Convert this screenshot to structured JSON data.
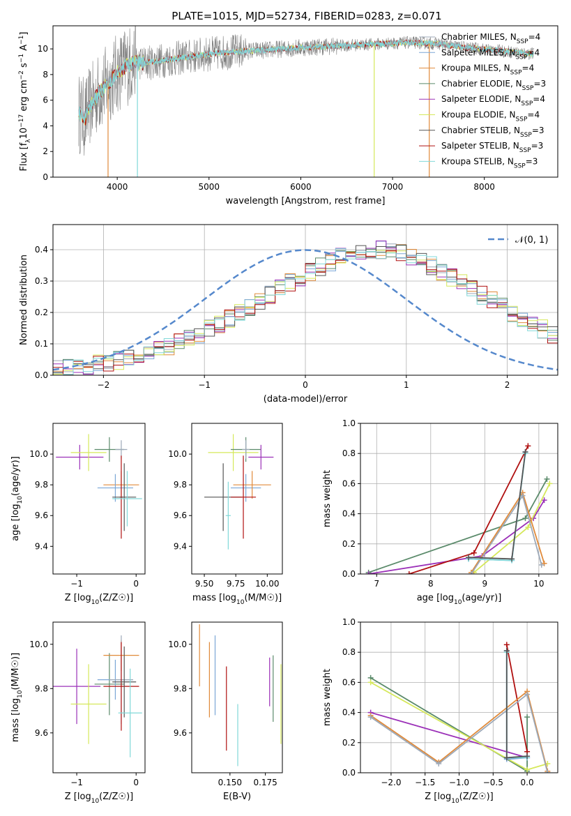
{
  "figure": {
    "title": "PLATE=1015, MJD=52734, FIBERID=0283, z=0.071"
  },
  "colors": {
    "Chabrier MILES": "#9da9b8",
    "Salpeter MILES": "#7aa6d6",
    "Kroupa MILES": "#e08a3a",
    "Chabrier ELODIE": "#5a8a6a",
    "Salpeter ELODIE": "#9b30b8",
    "Kroupa ELODIE": "#d5e85a",
    "Chabrier STELIB": "#555555",
    "Salpeter STELIB": "#b01010",
    "Kroupa STELIB": "#80d8d8",
    "observed": "#808080",
    "normal": "#5588cc",
    "grid": "#b0b0b0"
  },
  "chart_data": [
    {
      "id": "spectrum",
      "type": "line",
      "title": "PLATE=1015, MJD=52734, FIBERID=0283, z=0.071",
      "xlabel": "wavelength [Angstrom, rest frame]",
      "ylabel": "Flux [f_λ10^-17 erg cm^-2 s^-1 A^-1]",
      "xlim": [
        3300,
        8800
      ],
      "ylim": [
        0,
        11.8
      ],
      "xticks": [
        "4000",
        "5000",
        "6000",
        "7000",
        "8000"
      ],
      "yticks": [
        "0",
        "2",
        "4",
        "6",
        "8",
        "10"
      ],
      "grid": false,
      "legend_position": "right",
      "legend": [
        {
          "label": "Chabrier MILES",
          "sub": "N",
          "ssp": "SSP",
          "eq": "=4"
        },
        {
          "label": "Salpeter MILES",
          "sub": "N",
          "ssp": "SSP",
          "eq": "=4"
        },
        {
          "label": "Kroupa MILES",
          "sub": "N",
          "ssp": "SSP",
          "eq": "=4"
        },
        {
          "label": "Chabrier ELODIE",
          "sub": "N",
          "ssp": "SSP",
          "eq": "=3"
        },
        {
          "label": "Salpeter ELODIE",
          "sub": "N",
          "ssp": "SSP",
          "eq": "=4"
        },
        {
          "label": "Kroupa ELODIE",
          "sub": "N",
          "ssp": "SSP",
          "eq": "=4"
        },
        {
          "label": "Chabrier STELIB",
          "sub": "N",
          "ssp": "SSP",
          "eq": "=3"
        },
        {
          "label": "Salpeter STELIB",
          "sub": "N",
          "ssp": "SSP",
          "eq": "=3"
        },
        {
          "label": "Kroupa STELIB",
          "sub": "N",
          "ssp": "SSP",
          "eq": "=3"
        }
      ],
      "legend_display": [
        "Chabrier MILES, N_SSP=4",
        "Salpeter MILES, N_SSP=4",
        "Kroupa MILES, N_SSP=4",
        "Chabrier ELODIE, N_SSP=3",
        "Salpeter ELODIE, N_SSP=4",
        "Kroupa ELODIE, N_SSP=4",
        "Chabrier STELIB, N_SSP=3",
        "Salpeter STELIB, N_SSP=3",
        "Kroupa STELIB, N_SSP=3"
      ],
      "model_continuum": {
        "x": [
          3580,
          3650,
          3700,
          3800,
          3900,
          4000,
          4100,
          4200,
          4300,
          4500,
          4700,
          5000,
          5300,
          5600,
          5800,
          6000,
          6300,
          6600,
          6900,
          7200,
          7500,
          7800,
          8100,
          8400,
          8550
        ],
        "y": [
          5.0,
          4.6,
          5.5,
          6.6,
          7.3,
          8.1,
          8.7,
          9.0,
          8.9,
          9.1,
          9.3,
          9.6,
          9.8,
          9.9,
          10.0,
          10.1,
          10.2,
          10.3,
          10.4,
          10.5,
          10.4,
          10.1,
          9.9,
          9.7,
          9.6
        ]
      }
    },
    {
      "id": "residuals",
      "type": "bar",
      "xlabel": "(data-model)/error",
      "ylabel": "Normed distribution",
      "xlim": [
        -2.5,
        2.5
      ],
      "ylim": [
        0,
        0.48
      ],
      "xticks": [
        "−2",
        "−1",
        "0",
        "1",
        "2"
      ],
      "yticks": [
        "0.0",
        "0.1",
        "0.2",
        "0.3",
        "0.4"
      ],
      "grid": true,
      "legend_position": "top-right",
      "legend": [
        "𝒩(0, 1)"
      ],
      "bin_width": 0.1,
      "series_profile": [
        0.02,
        0.022,
        0.028,
        0.032,
        0.036,
        0.04,
        0.046,
        0.052,
        0.06,
        0.07,
        0.08,
        0.09,
        0.104,
        0.118,
        0.132,
        0.148,
        0.165,
        0.182,
        0.2,
        0.218,
        0.237,
        0.256,
        0.275,
        0.294,
        0.312,
        0.33,
        0.347,
        0.362,
        0.376,
        0.388,
        0.396,
        0.4,
        0.4,
        0.396,
        0.388,
        0.378,
        0.364,
        0.348,
        0.33,
        0.312,
        0.293,
        0.274,
        0.255,
        0.236,
        0.217,
        0.199,
        0.181,
        0.164,
        0.147,
        0.131
      ]
    },
    {
      "id": "age-vs-Z",
      "type": "scatter",
      "xlabel": "Z [log10(Z/Z☉)]",
      "ylabel": "age  [log10(age/yr)]",
      "xlim": [
        -1.4,
        0.15
      ],
      "ylim": [
        9.22,
        10.2
      ],
      "xticks": [
        "−1",
        "0"
      ],
      "yticks": [
        "9.4",
        "9.6",
        "9.8",
        "10.0"
      ],
      "points": [
        {
          "series": "Salpeter ELODIE",
          "x": -0.95,
          "y": 9.98,
          "xerr": 0.4,
          "yerr": 0.08
        },
        {
          "series": "Kroupa ELODIE",
          "x": -0.8,
          "y": 10.01,
          "xerr": 0.3,
          "yerr": 0.12
        },
        {
          "series": "Chabrier ELODIE",
          "x": -0.45,
          "y": 10.03,
          "xerr": 0.25,
          "yerr": 0.08
        },
        {
          "series": "Chabrier MILES",
          "x": -0.25,
          "y": 10.03,
          "xerr": 0.1,
          "yerr": 0.06
        },
        {
          "series": "Kroupa MILES",
          "x": -0.25,
          "y": 9.8,
          "xerr": 0.3,
          "yerr": 0.09
        },
        {
          "series": "Salpeter MILES",
          "x": -0.35,
          "y": 9.78,
          "xerr": 0.3,
          "yerr": 0.09
        },
        {
          "series": "Salpeter STELIB",
          "x": -0.25,
          "y": 9.72,
          "xerr": 0.03,
          "yerr": 0.27
        },
        {
          "series": "Chabrier STELIB",
          "x": -0.2,
          "y": 9.72,
          "xerr": 0.2,
          "yerr": 0.22
        },
        {
          "series": "Kroupa STELIB",
          "x": -0.15,
          "y": 9.71,
          "xerr": 0.25,
          "yerr": 0.18
        }
      ]
    },
    {
      "id": "age-vs-mass",
      "type": "scatter",
      "xlabel": "mass [log10(M/M☉)]",
      "ylabel": "",
      "xlim": [
        9.4,
        10.12
      ],
      "ylim": [
        9.22,
        10.2
      ],
      "xticks": [
        "9.50",
        "9.75",
        "10.00"
      ],
      "yticks": [
        "9.4",
        "9.6",
        "9.8",
        "10.0"
      ],
      "points": [
        {
          "series": "Kroupa ELODIE",
          "x": 9.73,
          "y": 10.01,
          "xerr": 0.2,
          "yerr": 0.12
        },
        {
          "series": "Chabrier ELODIE",
          "x": 9.83,
          "y": 10.03,
          "xerr": 0.12,
          "yerr": 0.08
        },
        {
          "series": "Salpeter ELODIE",
          "x": 9.95,
          "y": 9.98,
          "xerr": 0.1,
          "yerr": 0.08
        },
        {
          "series": "Chabrier MILES",
          "x": 9.83,
          "y": 10.03,
          "xerr": 0.03,
          "yerr": 0.06
        },
        {
          "series": "Salpeter MILES",
          "x": 9.83,
          "y": 9.78,
          "xerr": 0.12,
          "yerr": 0.09
        },
        {
          "series": "Kroupa MILES",
          "x": 9.88,
          "y": 9.8,
          "xerr": 0.15,
          "yerr": 0.09
        },
        {
          "series": "Chabrier STELIB",
          "x": 9.65,
          "y": 9.72,
          "xerr": 0.15,
          "yerr": 0.22
        },
        {
          "series": "Salpeter STELIB",
          "x": 9.81,
          "y": 9.72,
          "xerr": 0.1,
          "yerr": 0.27
        },
        {
          "series": "Kroupa STELIB",
          "x": 9.69,
          "y": 9.6,
          "xerr": 0.02,
          "yerr": 0.22
        }
      ]
    },
    {
      "id": "mass-weight-vs-age",
      "type": "line",
      "xlabel": "age  [log10(age/yr)]",
      "ylabel": "mass weight",
      "xlim": [
        6.7,
        10.35
      ],
      "ylim": [
        0,
        1.0
      ],
      "xticks": [
        "7",
        "8",
        "9",
        "10"
      ],
      "yticks": [
        "0.0",
        "0.2",
        "0.4",
        "0.6",
        "0.8",
        "1.0"
      ],
      "grid": true,
      "series": [
        {
          "name": "Chabrier ELODIE",
          "x": [
            6.85,
            9.75,
            10.15
          ],
          "y": [
            0.01,
            0.37,
            0.63
          ]
        },
        {
          "name": "Salpeter ELODIE",
          "x": [
            6.85,
            8.95,
            9.9,
            10.1
          ],
          "y": [
            0.0,
            0.12,
            0.37,
            0.49
          ]
        },
        {
          "name": "Kroupa ELODIE",
          "x": [
            8.8,
            9.8,
            10.2
          ],
          "y": [
            0.01,
            0.31,
            0.6
          ]
        },
        {
          "name": "Salpeter STELIB",
          "x": [
            7.6,
            8.8,
            9.8
          ],
          "y": [
            0.0,
            0.14,
            0.85
          ]
        },
        {
          "name": "Kroupa MILES",
          "x": [
            8.75,
            9.7,
            10.1
          ],
          "y": [
            0.01,
            0.54,
            0.07
          ]
        },
        {
          "name": "Chabrier MILES",
          "x": [
            8.75,
            9.7,
            10.05
          ],
          "y": [
            0.0,
            0.52,
            0.06
          ]
        },
        {
          "name": "Salpeter MILES",
          "x": [
            8.7,
            9.5,
            9.75
          ],
          "y": [
            0.1,
            0.09,
            0.81
          ]
        },
        {
          "name": "Kroupa STELIB",
          "x": [
            8.7,
            9.5,
            9.75
          ],
          "y": [
            0.1,
            0.09,
            0.8
          ]
        },
        {
          "name": "Chabrier STELIB",
          "x": [
            8.7,
            9.5,
            9.75
          ],
          "y": [
            0.11,
            0.1,
            0.81
          ]
        }
      ]
    },
    {
      "id": "mass-vs-Z",
      "type": "scatter",
      "xlabel": "Z [log10(Z/Z☉)]",
      "ylabel": "mass [log10(M/M☉)]",
      "xlim": [
        -1.4,
        0.15
      ],
      "ylim": [
        9.42,
        10.1
      ],
      "xticks": [
        "−1",
        "0"
      ],
      "yticks": [
        "9.6",
        "9.8",
        "10.0"
      ],
      "points": [
        {
          "series": "Salpeter ELODIE",
          "x": -1.0,
          "y": 9.81,
          "xerr": 0.4,
          "yerr": 0.17
        },
        {
          "series": "Kroupa ELODIE",
          "x": -0.8,
          "y": 9.73,
          "xerr": 0.3,
          "yerr": 0.18
        },
        {
          "series": "Chabrier ELODIE",
          "x": -0.45,
          "y": 9.82,
          "xerr": 0.25,
          "yerr": 0.14
        },
        {
          "series": "Salpeter MILES",
          "x": -0.35,
          "y": 9.84,
          "xerr": 0.3,
          "yerr": 0.09
        },
        {
          "series": "Kroupa MILES",
          "x": -0.25,
          "y": 9.95,
          "xerr": 0.3,
          "yerr": 0.07
        },
        {
          "series": "Chabrier MILES",
          "x": -0.25,
          "y": 9.84,
          "xerr": 0.2,
          "yerr": 0.2
        },
        {
          "series": "Salpeter STELIB",
          "x": -0.25,
          "y": 9.81,
          "xerr": 0.3,
          "yerr": 0.2
        },
        {
          "series": "Chabrier STELIB",
          "x": -0.2,
          "y": 9.83,
          "xerr": 0.2,
          "yerr": 0.16
        },
        {
          "series": "Kroupa STELIB",
          "x": -0.1,
          "y": 9.69,
          "xerr": 0.2,
          "yerr": 0.2
        }
      ]
    },
    {
      "id": "mass-vs-ebv",
      "type": "scatter",
      "xlabel": "E(B-V)",
      "ylabel": "",
      "xlim": [
        0.123,
        0.187
      ],
      "ylim": [
        9.42,
        10.1
      ],
      "xticks": [
        "0.150",
        "0.175"
      ],
      "yticks": [
        "9.6",
        "9.8",
        "10.0"
      ],
      "points": [
        {
          "series": "Kroupa MILES",
          "x": 0.1285,
          "y": 9.95,
          "xerr": 0.0,
          "yerr": 0.14
        },
        {
          "series": "Kroupa MILES",
          "x": 0.1355,
          "y": 9.84,
          "xerr": 0.0,
          "yerr": 0.17
        },
        {
          "series": "Salpeter MILES",
          "x": 0.1395,
          "y": 9.86,
          "xerr": 0.0,
          "yerr": 0.18
        },
        {
          "series": "Salpeter STELIB",
          "x": 0.1475,
          "y": 9.71,
          "xerr": 0.0,
          "yerr": 0.19
        },
        {
          "series": "Kroupa STELIB",
          "x": 0.1555,
          "y": 9.59,
          "xerr": 0.0,
          "yerr": 0.14
        },
        {
          "series": "Salpeter ELODIE",
          "x": 0.178,
          "y": 9.83,
          "xerr": 0.0,
          "yerr": 0.11
        },
        {
          "series": "Chabrier ELODIE",
          "x": 0.1805,
          "y": 9.8,
          "xerr": 0.0,
          "yerr": 0.15
        },
        {
          "series": "Kroupa ELODIE",
          "x": 0.186,
          "y": 9.73,
          "xerr": 0.0,
          "yerr": 0.18
        }
      ]
    },
    {
      "id": "mass-weight-vs-Z",
      "type": "line",
      "xlabel": "Z [log10(Z/Z☉)]",
      "ylabel": "mass weight",
      "xlim": [
        -2.45,
        0.45
      ],
      "ylim": [
        0,
        1.0
      ],
      "xticks": [
        "−2.0",
        "−1.5",
        "−1.0",
        "−0.5",
        "0.0"
      ],
      "yticks": [
        "0.0",
        "0.2",
        "0.4",
        "0.6",
        "0.8",
        "1.0"
      ],
      "grid": true,
      "series": [
        {
          "name": "Chabrier ELODIE",
          "x": [
            -2.3,
            0.0,
            0.0
          ],
          "y": [
            0.63,
            0.01,
            0.37
          ]
        },
        {
          "name": "Salpeter ELODIE",
          "x": [
            -2.3,
            0.0
          ],
          "y": [
            0.4,
            0.1
          ]
        },
        {
          "name": "Kroupa ELODIE",
          "x": [
            -2.3,
            0.0,
            0.3
          ],
          "y": [
            0.6,
            0.02,
            0.06
          ]
        },
        {
          "name": "Salpeter STELIB",
          "x": [
            -0.3,
            0.0
          ],
          "y": [
            0.85,
            0.14
          ]
        },
        {
          "name": "Kroupa MILES",
          "x": [
            -2.3,
            -1.3,
            0.0,
            0.3
          ],
          "y": [
            0.38,
            0.07,
            0.54,
            0.01
          ]
        },
        {
          "name": "Chabrier MILES",
          "x": [
            -2.3,
            -1.3,
            0.0,
            0.3
          ],
          "y": [
            0.37,
            0.06,
            0.52,
            0.0
          ]
        },
        {
          "name": "Salpeter MILES",
          "x": [
            -0.3,
            -0.3,
            0.0
          ],
          "y": [
            0.81,
            0.09,
            0.1
          ]
        },
        {
          "name": "Kroupa STELIB",
          "x": [
            -0.3,
            -0.3,
            0.0
          ],
          "y": [
            0.8,
            0.1,
            0.1
          ]
        },
        {
          "name": "Chabrier STELIB",
          "x": [
            -0.3,
            -0.3,
            0.0
          ],
          "y": [
            0.81,
            0.1,
            0.11
          ]
        }
      ]
    }
  ]
}
